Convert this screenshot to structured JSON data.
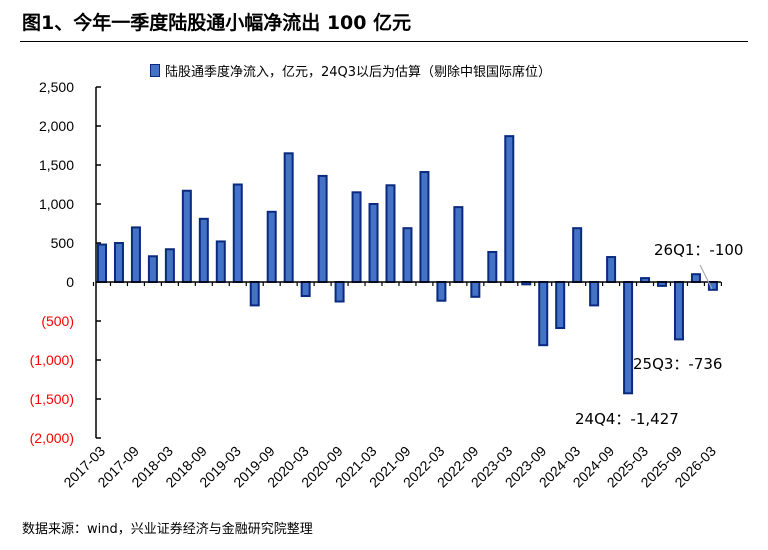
{
  "title": "图1、今年一季度陆股通小幅净流出 100 亿元",
  "footer": "数据来源：wind，兴业证券经济与金融研究院整理",
  "chart_data": {
    "type": "bar",
    "legend": "陆股通季度净流入，亿元，24Q3以后为估算（剔除中银国际席位）",
    "legend_position": "top",
    "ylim": [
      -2000,
      2500
    ],
    "yticks": [
      2500,
      2000,
      1500,
      1000,
      500,
      0,
      -500,
      -1000,
      -1500,
      -2000
    ],
    "ytick_labels": [
      "2,500",
      "2,000",
      "1,500",
      "1,000",
      "500",
      "0",
      "(500)",
      "(1,000)",
      "(1,500)",
      "(2,000)"
    ],
    "negative_label_color": "#FF0000",
    "bar_fill": "#4472C4",
    "bar_stroke": "#0A2A80",
    "categories": [
      "2017-03",
      "2017-06",
      "2017-09",
      "2017-12",
      "2018-03",
      "2018-06",
      "2018-09",
      "2018-12",
      "2019-03",
      "2019-06",
      "2019-09",
      "2019-12",
      "2020-03",
      "2020-06",
      "2020-09",
      "2020-12",
      "2021-03",
      "2021-06",
      "2021-09",
      "2021-12",
      "2022-03",
      "2022-06",
      "2022-09",
      "2022-12",
      "2023-03",
      "2023-06",
      "2023-09",
      "2023-12",
      "2024-03",
      "2024-06",
      "2024-09",
      "2024-12",
      "2025-03",
      "2025-06",
      "2025-09",
      "2025-12",
      "2026-03"
    ],
    "xtick_labels": [
      "2017-03",
      "2017-09",
      "2018-03",
      "2018-09",
      "2019-03",
      "2019-09",
      "2020-03",
      "2020-09",
      "2021-03",
      "2021-09",
      "2022-03",
      "2022-09",
      "2023-03",
      "2023-09",
      "2024-03",
      "2024-09",
      "2025-03",
      "2025-09",
      "2026-03"
    ],
    "values": [
      480,
      500,
      700,
      330,
      420,
      1170,
      810,
      520,
      1250,
      -300,
      900,
      1650,
      -180,
      1360,
      -250,
      1150,
      1000,
      1240,
      690,
      1410,
      -240,
      960,
      -190,
      385,
      1870,
      -30,
      -810,
      -590,
      690,
      -300,
      320,
      -1427,
      50,
      -50,
      -736,
      100,
      -100
    ],
    "annotations": [
      {
        "text": "26Q1：-100",
        "category": "2026-03"
      },
      {
        "text": "25Q3：-736",
        "category": "2025-09"
      },
      {
        "text": "24Q4：-1,427",
        "category": "2024-12"
      }
    ]
  }
}
